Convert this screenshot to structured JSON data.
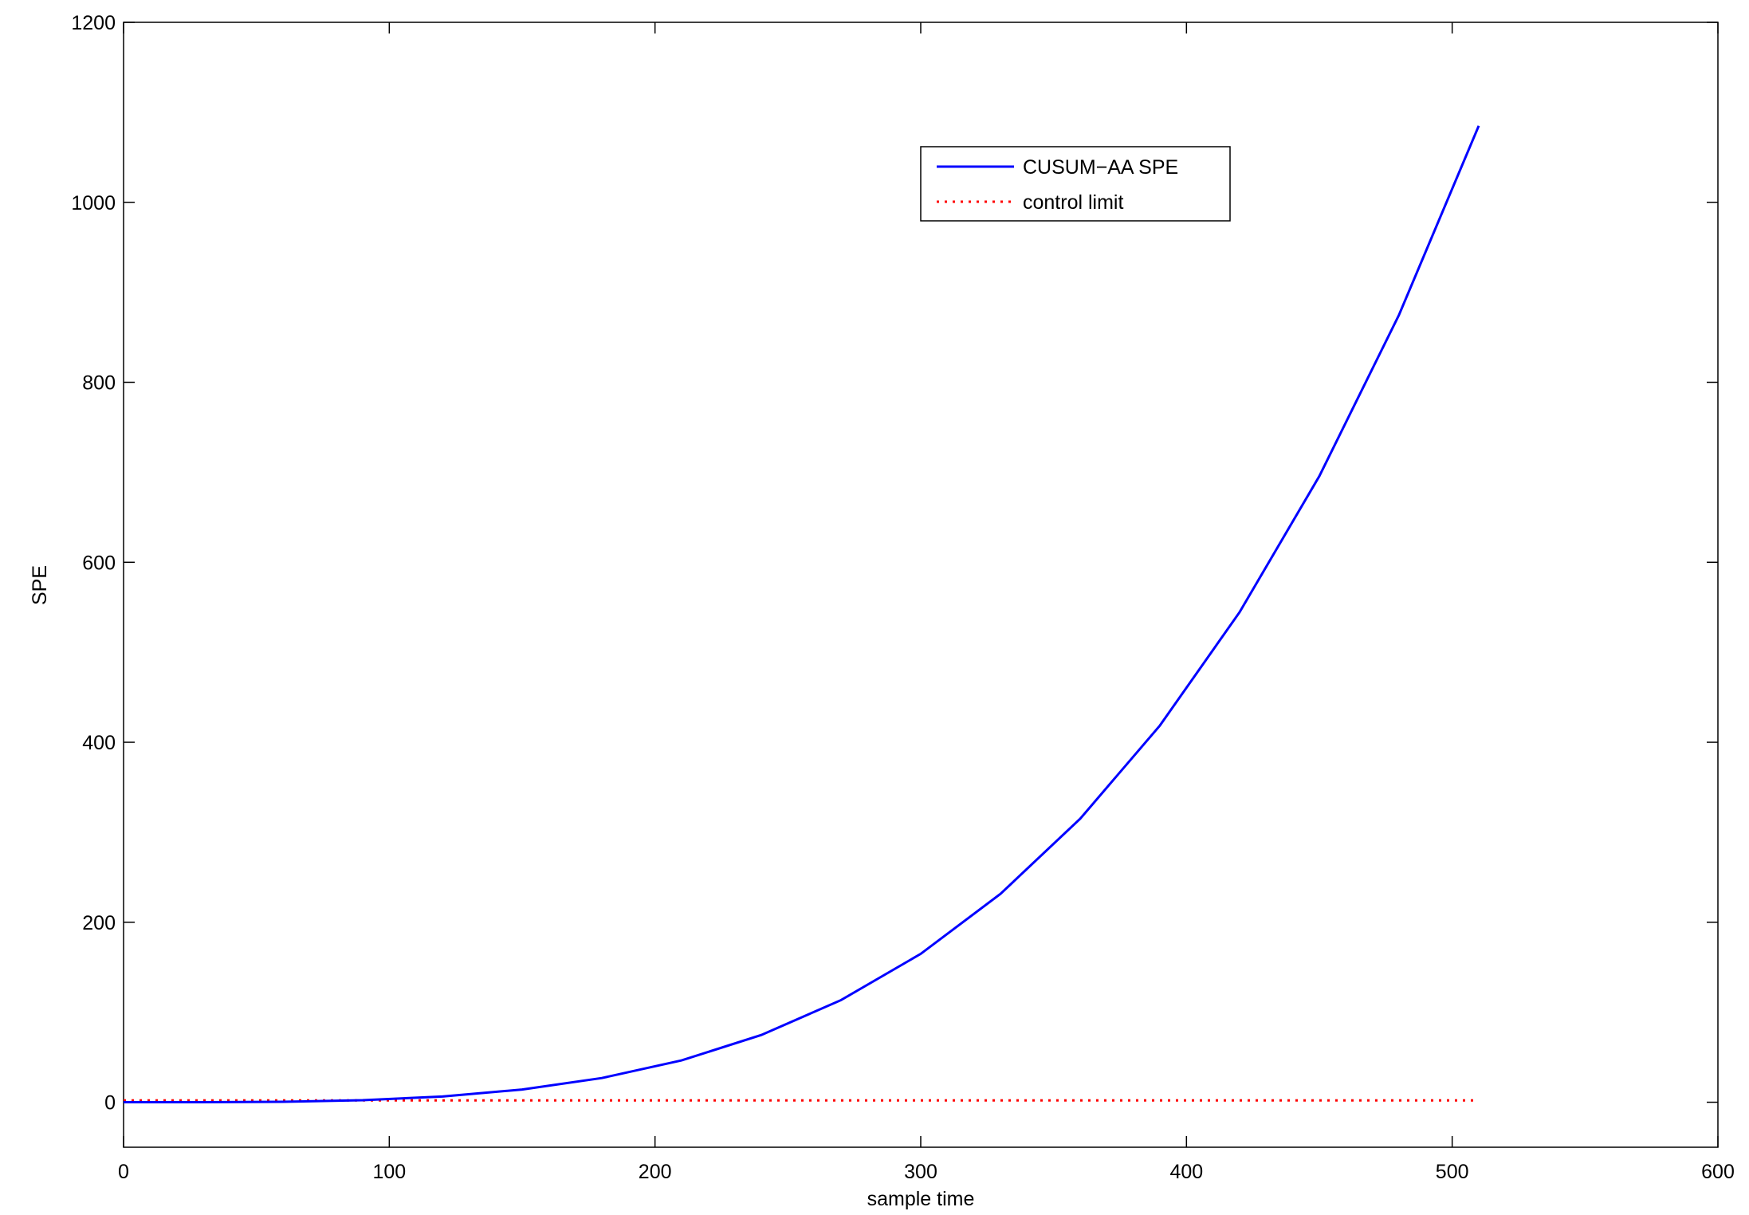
{
  "chart_data": {
    "type": "line",
    "xlabel": "sample time",
    "ylabel": "SPE",
    "xlim": [
      0,
      600
    ],
    "xticks": [
      0,
      100,
      200,
      300,
      400,
      500,
      600
    ],
    "ylim": [
      -50,
      1200
    ],
    "yticks": [
      0,
      200,
      400,
      600,
      800,
      1000,
      1200
    ],
    "legend": "top-center",
    "series": [
      {
        "name": "CUSUM−AA SPE",
        "color": "#0000ff",
        "style": "solid",
        "x": [
          0,
          30,
          60,
          90,
          120,
          150,
          180,
          210,
          240,
          270,
          300,
          330,
          360,
          390,
          420,
          450,
          480,
          510
        ],
        "values": [
          0,
          0.05,
          0.5,
          2.3,
          6.4,
          14.1,
          26.9,
          46.5,
          74.7,
          113.5,
          164.9,
          231.5,
          315,
          418.6,
          544.6,
          695.7,
          875,
          1085
        ]
      },
      {
        "name": "control limit",
        "color": "#ff0000",
        "style": "dotted",
        "x": [
          0,
          510
        ],
        "values": [
          2,
          2
        ]
      }
    ]
  }
}
